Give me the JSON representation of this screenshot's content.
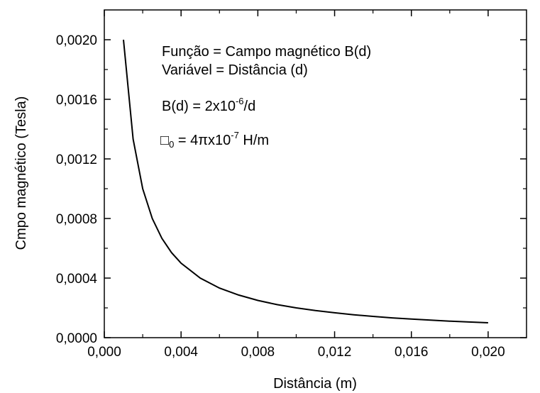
{
  "chart_data": {
    "type": "line",
    "xlabel": "Distância (m)",
    "ylabel": "Cmpo magnético (Tesla)",
    "xlim": [
      0.0,
      0.022
    ],
    "ylim": [
      0.0,
      0.0022
    ],
    "x_ticks": [
      "0,000",
      "0,004",
      "0,008",
      "0,012",
      "0,016",
      "0,020"
    ],
    "y_ticks": [
      "0,0000",
      "0,0004",
      "0,0008",
      "0,0012",
      "0,0016",
      "0,0020"
    ],
    "series": [
      {
        "x": [
          0.001,
          0.0015,
          0.002,
          0.0025,
          0.003,
          0.0035,
          0.004,
          0.005,
          0.006,
          0.007,
          0.008,
          0.009,
          0.01,
          0.011,
          0.012,
          0.013,
          0.014,
          0.015,
          0.016,
          0.017,
          0.018,
          0.019,
          0.02
        ],
        "y": [
          0.002,
          0.001333,
          0.001,
          0.0008,
          0.000667,
          0.000571,
          0.0005,
          0.0004,
          0.000333,
          0.000286,
          0.00025,
          0.000222,
          0.0002,
          0.000182,
          0.000167,
          0.000154,
          0.000143,
          0.000133,
          0.000125,
          0.000118,
          0.000111,
          0.000105,
          0.0001
        ]
      }
    ],
    "color": "#000000",
    "grid": false,
    "annotations": {
      "line1": "Função = Campo magnético B(d)",
      "line2": "Variável = Distância (d)",
      "formula_main": "B(d) = 2x10",
      "formula_exp": "-6",
      "formula_tail": "/d",
      "mu_symbol": "□",
      "mu_sub": "0",
      "mu_main": " = 4πx10",
      "mu_exp": "-7",
      "mu_tail": " H/m"
    }
  }
}
